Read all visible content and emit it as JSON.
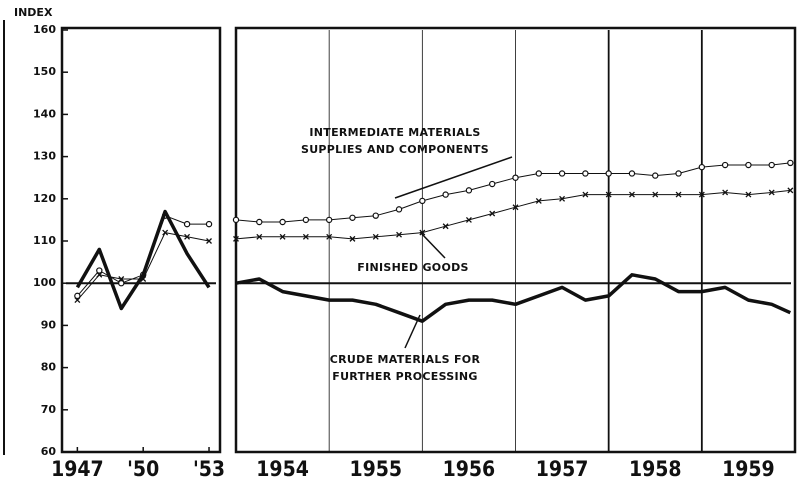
{
  "chart_data": {
    "type": "line",
    "y_label": "INDEX",
    "ylim": [
      60,
      160
    ],
    "yticks": [
      60,
      70,
      80,
      90,
      100,
      110,
      120,
      130,
      140,
      150,
      160
    ],
    "reference": 100,
    "color": "#111111",
    "annotations": [
      "INTERMEDIATE MATERIALS",
      "SUPPLIES AND COMPONENTS",
      "FINISHED GOODS",
      "CRUDE MATERIALS FOR",
      "FURTHER PROCESSING"
    ],
    "panels": [
      {
        "xlim": [
          1946.3,
          1953.5
        ],
        "xticks": [
          {
            "value": 1947,
            "label": "1947"
          },
          {
            "value": 1950,
            "label": "'50"
          },
          {
            "value": 1953,
            "label": "'53"
          }
        ],
        "grid": false,
        "x": [
          1947,
          1948,
          1949,
          1950,
          1951,
          1952,
          1953
        ],
        "series": [
          {
            "marker": "o",
            "linewidth": 1,
            "values": [
              97,
              103,
              100,
              102,
              116,
              114,
              114
            ]
          },
          {
            "marker": "x",
            "linewidth": 1,
            "values": [
              96,
              102,
              101,
              101,
              112,
              111,
              110
            ]
          },
          {
            "marker": "none",
            "linewidth": 3.5,
            "values": [
              99,
              108,
              94,
              102,
              117,
              107,
              99
            ]
          }
        ]
      },
      {
        "xlim": [
          1954,
          1960
        ],
        "xticks": [
          {
            "value": 1954,
            "label": "1954"
          },
          {
            "value": 1955,
            "label": "1955"
          },
          {
            "value": 1956,
            "label": "1956"
          },
          {
            "value": 1957,
            "label": "1957"
          },
          {
            "value": 1958,
            "label": "1958"
          },
          {
            "value": 1959,
            "label": "1959"
          }
        ],
        "grid": true,
        "x": [
          1954,
          1954.25,
          1954.5,
          1954.75,
          1955,
          1955.25,
          1955.5,
          1955.75,
          1956,
          1956.25,
          1956.5,
          1956.75,
          1957,
          1957.25,
          1957.5,
          1957.75,
          1958,
          1958.25,
          1958.5,
          1958.75,
          1959,
          1959.25,
          1959.5,
          1959.75,
          1959.95
        ],
        "series": [
          {
            "marker": "o",
            "linewidth": 1,
            "values": [
              115,
              114.5,
              114.5,
              115,
              115,
              115.5,
              116,
              117.5,
              119.5,
              121,
              122,
              123.5,
              125,
              126,
              126,
              126,
              126,
              126,
              125.5,
              126,
              127.5,
              128,
              128,
              128,
              128.5
            ]
          },
          {
            "marker": "x",
            "linewidth": 1,
            "values": [
              110.5,
              111,
              111,
              111,
              111,
              110.5,
              111,
              111.5,
              112,
              113.5,
              115,
              116.5,
              118,
              119.5,
              120,
              121,
              121,
              121,
              121,
              121,
              121,
              121.5,
              121,
              121.5,
              122
            ]
          },
          {
            "marker": "none",
            "linewidth": 3.5,
            "values": [
              100,
              101,
              98,
              97,
              96,
              96,
              95,
              93,
              91,
              95,
              96,
              96,
              95,
              97,
              99,
              96,
              97,
              102,
              101,
              98,
              98,
              99,
              96,
              95,
              93
            ]
          }
        ]
      }
    ]
  }
}
